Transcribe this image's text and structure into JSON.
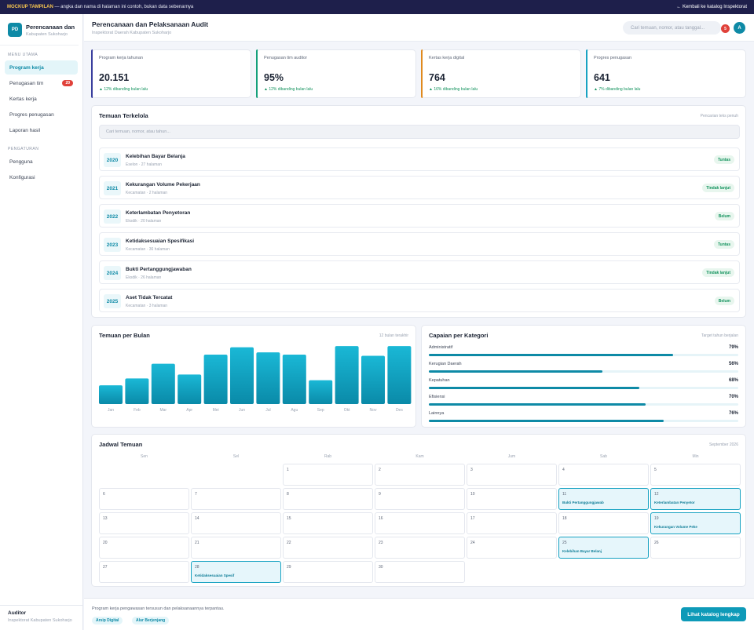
{
  "banner": {
    "tag": "MOCKUP TAMPILAN",
    "text": " — angka dan nama di halaman ini contoh, bukan data sebenarnya",
    "back": "← Kembali ke katalog Inspektorat"
  },
  "sidebar": {
    "logo": "PD",
    "title": "Perencanaan dan",
    "subtitle": "Kabupaten Sukoharjo",
    "main_heading": "MENU UTAMA",
    "main_items": [
      {
        "label": "Program kerja",
        "active": true
      },
      {
        "label": "Penugasan tim",
        "badge": "20"
      },
      {
        "label": "Kertas kerja"
      },
      {
        "label": "Progres penugasan"
      },
      {
        "label": "Laporan hasil"
      }
    ],
    "settings_heading": "PENGATURAN",
    "settings_items": [
      {
        "label": "Pengguna"
      },
      {
        "label": "Konfigurasi"
      }
    ],
    "footer_role": "Auditor",
    "footer_org": "Inspektorat Kabupaten Sukoharjo"
  },
  "header": {
    "title": "Perencanaan dan Pelaksanaan Audit",
    "subtitle": "Inspektorat Daerah Kabupaten Sukoharjo",
    "search_placeholder": "Cari temuan, nomor, atau tanggal...",
    "notif_count": "5",
    "avatar": "A"
  },
  "stats": [
    {
      "label": "Program kerja tahunan",
      "value": "20.151",
      "delta": "▲ 12% dibanding bulan lalu",
      "accent": "#3a3f9e"
    },
    {
      "label": "Penugasan tim auditor",
      "value": "95%",
      "delta": "▲ 12% dibanding bulan lalu",
      "accent": "#14a07a"
    },
    {
      "label": "Kertas kerja digital",
      "value": "764",
      "delta": "▲ 16% dibanding bulan lalu",
      "accent": "#e08a1e"
    },
    {
      "label": "Progres penugasan",
      "value": "641",
      "delta": "▲ 7% dibanding bulan lalu",
      "accent": "#17a2c2"
    }
  ],
  "findings": {
    "title": "Temuan Terkelola",
    "note": "Pencarian teks penuh",
    "search_placeholder": "Cari temuan, nomor, atau tahun...",
    "rows": [
      {
        "year": "2020",
        "title": "Kelebihan Bayar Belanja",
        "meta": "Eselon · 27 halaman",
        "status": "Tuntas"
      },
      {
        "year": "2021",
        "title": "Kekurangan Volume Pekerjaan",
        "meta": "Kecamatan · 2 halaman",
        "status": "Tindak lanjut"
      },
      {
        "year": "2022",
        "title": "Keterlambatan Penyetoran",
        "meta": "Eksdik · 20 halaman",
        "status": "Belum"
      },
      {
        "year": "2023",
        "title": "Ketidaksesuaian Spesifikasi",
        "meta": "Kecamatan · 36 halaman",
        "status": "Tuntas"
      },
      {
        "year": "2024",
        "title": "Bukti Pertanggungjawaban",
        "meta": "Eksdik · 26 halaman",
        "status": "Tindak lanjut"
      },
      {
        "year": "2025",
        "title": "Aset Tidak Tercatat",
        "meta": "Kecamatan · 3 halaman",
        "status": "Belum"
      }
    ]
  },
  "monthly": {
    "title": "Temuan per Bulan",
    "note": "12 bulan terakhir"
  },
  "chart_data": {
    "type": "bar",
    "categories": [
      "Jan",
      "Feb",
      "Mar",
      "Apr",
      "Mei",
      "Jun",
      "Jul",
      "Agu",
      "Sep",
      "Okt",
      "Nov",
      "Des"
    ],
    "values": [
      33,
      45,
      71,
      52,
      87,
      100,
      91,
      87,
      42,
      102,
      85,
      102
    ],
    "ylim": [
      0,
      105
    ]
  },
  "categories": {
    "title": "Capaian per Kategori",
    "note": "Target tahun berjalan",
    "items": [
      {
        "label": "Administratif",
        "pct": "79%",
        "value": 79
      },
      {
        "label": "Kerugian Daerah",
        "pct": "56%",
        "value": 56
      },
      {
        "label": "Kepatuhan",
        "pct": "68%",
        "value": 68
      },
      {
        "label": "Efisiensi",
        "pct": "70%",
        "value": 70
      },
      {
        "label": "Lainnya",
        "pct": "76%",
        "value": 76
      }
    ]
  },
  "calendar": {
    "title": "Jadwal Temuan",
    "month": "September 2026",
    "weekdays": [
      "Sen",
      "Sel",
      "Rab",
      "Kam",
      "Jum",
      "Sab",
      "Min"
    ],
    "first_col": 2,
    "days": 30,
    "events": {
      "11": "Bukti Pertanggungjawab",
      "12": "Keterlambatan Penyetor",
      "19": "Kekurangan Volume Peke",
      "25": "Kelebihan Bayar Belanj",
      "28": "Ketidaksesuaian Spesif"
    }
  },
  "footer": {
    "text": "Program kerja pengawasan tersusun dan pelaksanaannya terpantau.",
    "chips": [
      "Arsip Digital",
      "Alur Berjenjang"
    ],
    "button": "Lihat katalog lengkap"
  }
}
